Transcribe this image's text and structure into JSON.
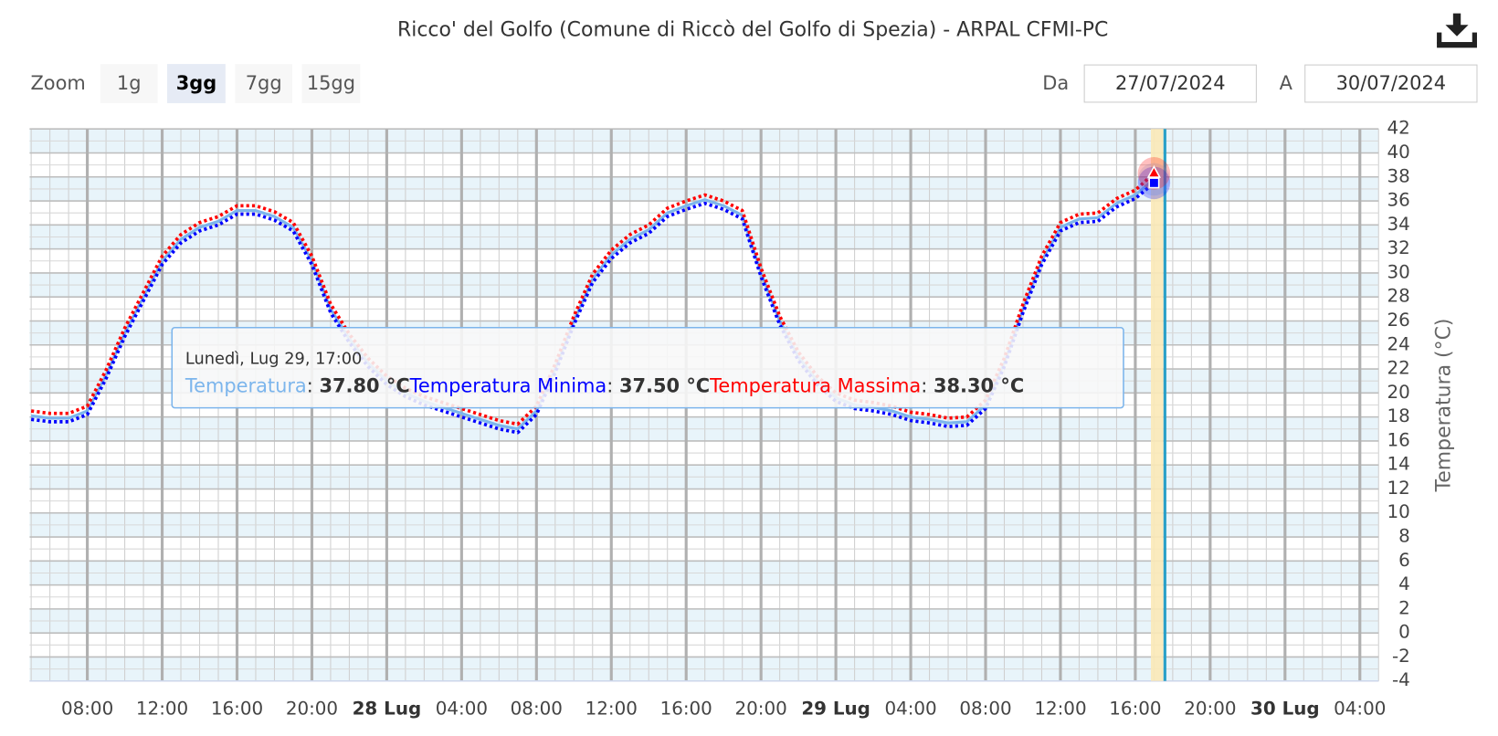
{
  "chart_data": {
    "type": "line",
    "title": "Ricco' del Golfo (Comune di Riccò del Golfo di Spezia) - ARPAL CFMI-PC",
    "y_label": "Temperatura (°C)",
    "controls": {
      "zoom_label": "Zoom",
      "zoom_buttons": [
        "1g",
        "3gg",
        "7gg",
        "15gg"
      ],
      "selected": 1,
      "from_label": "Da",
      "from": "27/07/2024",
      "to_label": "A",
      "to": "30/07/2024"
    },
    "x": [
      "2024-07-27T05:00",
      "2024-07-27T06:00",
      "2024-07-27T07:00",
      "2024-07-27T08:00",
      "2024-07-27T09:00",
      "2024-07-27T10:00",
      "2024-07-27T11:00",
      "2024-07-27T12:00",
      "2024-07-27T13:00",
      "2024-07-27T14:00",
      "2024-07-27T15:00",
      "2024-07-27T16:00",
      "2024-07-27T17:00",
      "2024-07-27T18:00",
      "2024-07-27T19:00",
      "2024-07-27T20:00",
      "2024-07-27T21:00",
      "2024-07-27T22:00",
      "2024-07-27T23:00",
      "2024-07-28T00:00",
      "2024-07-28T01:00",
      "2024-07-28T02:00",
      "2024-07-28T03:00",
      "2024-07-28T04:00",
      "2024-07-28T05:00",
      "2024-07-28T06:00",
      "2024-07-28T07:00",
      "2024-07-28T08:00",
      "2024-07-28T09:00",
      "2024-07-28T10:00",
      "2024-07-28T11:00",
      "2024-07-28T12:00",
      "2024-07-28T13:00",
      "2024-07-28T14:00",
      "2024-07-28T15:00",
      "2024-07-28T16:00",
      "2024-07-28T17:00",
      "2024-07-28T18:00",
      "2024-07-28T19:00",
      "2024-07-28T20:00",
      "2024-07-28T21:00",
      "2024-07-28T22:00",
      "2024-07-28T23:00",
      "2024-07-29T00:00",
      "2024-07-29T01:00",
      "2024-07-29T02:00",
      "2024-07-29T03:00",
      "2024-07-29T04:00",
      "2024-07-29T05:00",
      "2024-07-29T06:00",
      "2024-07-29T07:00",
      "2024-07-29T08:00",
      "2024-07-29T09:00",
      "2024-07-29T10:00",
      "2024-07-29T11:00",
      "2024-07-29T12:00",
      "2024-07-29T13:00",
      "2024-07-29T14:00",
      "2024-07-29T15:00",
      "2024-07-29T16:00",
      "2024-07-29T17:00"
    ],
    "series": [
      {
        "name": "Temperatura",
        "color": "#7cb5ec",
        "dash": false,
        "marker": "circle",
        "values": [
          18.1,
          17.9,
          17.9,
          18.5,
          21.5,
          25,
          28,
          31,
          32.8,
          33.8,
          34.3,
          35.2,
          35.2,
          34.7,
          33.8,
          31,
          27,
          24.5,
          22.5,
          21,
          20,
          19.3,
          18.8,
          18.3,
          17.8,
          17.3,
          17,
          18.5,
          22,
          26,
          29.5,
          31.5,
          32.8,
          33.6,
          35,
          35.6,
          36.1,
          35.6,
          34.8,
          30,
          26,
          23,
          21,
          19.6,
          19,
          18.8,
          18.5,
          18,
          17.8,
          17.5,
          17.6,
          19,
          22.5,
          27,
          31,
          33.8,
          34.5,
          34.6,
          35.8,
          36.5,
          37.8
        ]
      },
      {
        "name": "Temperatura Minima",
        "color": "#0000ff",
        "dash": true,
        "marker": "square",
        "values": [
          17.8,
          17.6,
          17.6,
          18.2,
          21.2,
          24.7,
          27.7,
          30.7,
          32.5,
          33.5,
          34,
          34.9,
          34.9,
          34.4,
          33.5,
          30.7,
          26.7,
          24.2,
          22.2,
          20.7,
          19.7,
          19,
          18.5,
          18,
          17.5,
          17,
          16.7,
          18.2,
          21.7,
          25.7,
          29.2,
          31.2,
          32.5,
          33.3,
          34.7,
          35.3,
          35.8,
          35.3,
          34.5,
          29.7,
          25.7,
          22.7,
          20.7,
          19.3,
          18.7,
          18.5,
          18.2,
          17.7,
          17.5,
          17.2,
          17.3,
          18.7,
          22.2,
          26.7,
          30.7,
          33.5,
          34.2,
          34.3,
          35.5,
          36.2,
          37.5
        ]
      },
      {
        "name": "Temperatura Massima",
        "color": "#ff0000",
        "dash": true,
        "marker": "triangle",
        "values": [
          18.5,
          18.3,
          18.3,
          18.9,
          21.9,
          25.4,
          28.4,
          31.4,
          33.2,
          34.2,
          34.7,
          35.6,
          35.6,
          35.1,
          34.2,
          31.4,
          27.4,
          24.9,
          22.9,
          21.4,
          20.4,
          19.7,
          19.2,
          18.7,
          18.2,
          17.7,
          17.4,
          18.9,
          22.4,
          26.4,
          29.9,
          31.9,
          33.2,
          34,
          35.4,
          36,
          36.5,
          36,
          35.2,
          30.4,
          26.4,
          23.4,
          21.4,
          20,
          19.4,
          19.2,
          18.9,
          18.4,
          18.2,
          17.9,
          18,
          19.4,
          22.9,
          27.4,
          31.4,
          34.2,
          34.9,
          35,
          36.2,
          36.9,
          38.3
        ]
      }
    ],
    "tooltip": {
      "index": 60,
      "header": "Lunedì, Lug 29, 17:00",
      "value_labels": [
        "37.80 °C",
        "37.50 °C",
        "38.30 °C"
      ]
    },
    "plot_band": [
      "2024-07-29T16:50",
      "2024-07-29T17:30"
    ],
    "plot_line": "2024-07-29T17:35",
    "xlim": [
      "2024-07-27T04:55",
      "2024-07-30T05:00"
    ],
    "xticks": [
      {
        "value": "2024-07-27T08:00",
        "label": "08:00"
      },
      {
        "value": "2024-07-27T12:00",
        "label": "12:00"
      },
      {
        "value": "2024-07-27T16:00",
        "label": "16:00"
      },
      {
        "value": "2024-07-27T20:00",
        "label": "20:00"
      },
      {
        "value": "2024-07-28T00:00",
        "label": "28 Lug"
      },
      {
        "value": "2024-07-28T04:00",
        "label": "04:00"
      },
      {
        "value": "2024-07-28T08:00",
        "label": "08:00"
      },
      {
        "value": "2024-07-28T12:00",
        "label": "12:00"
      },
      {
        "value": "2024-07-28T16:00",
        "label": "16:00"
      },
      {
        "value": "2024-07-28T20:00",
        "label": "20:00"
      },
      {
        "value": "2024-07-29T00:00",
        "label": "29 Lug"
      },
      {
        "value": "2024-07-29T04:00",
        "label": "04:00"
      },
      {
        "value": "2024-07-29T08:00",
        "label": "08:00"
      },
      {
        "value": "2024-07-29T12:00",
        "label": "12:00"
      },
      {
        "value": "2024-07-29T16:00",
        "label": "16:00"
      },
      {
        "value": "2024-07-29T20:00",
        "label": "20:00"
      },
      {
        "value": "2024-07-30T00:00",
        "label": "30 Lug"
      },
      {
        "value": "2024-07-30T04:00",
        "label": "04:00"
      }
    ],
    "ylim": [
      -4,
      42
    ],
    "yticks": [
      -4,
      -2,
      0,
      2,
      4,
      6,
      8,
      10,
      12,
      14,
      16,
      18,
      20,
      22,
      24,
      26,
      28,
      30,
      32,
      34,
      36,
      38,
      40,
      42
    ],
    "grid": true
  }
}
